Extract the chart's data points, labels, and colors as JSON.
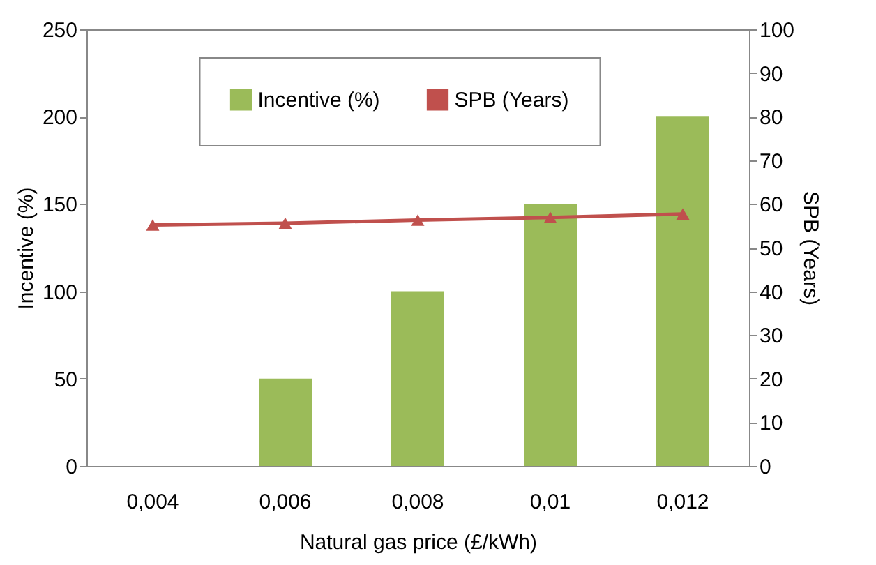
{
  "chart_data": {
    "type": "bar",
    "xlabel": "Natural gas price (£/kWh)",
    "ylabel": "Incentive (%)",
    "y2label": "SPB (Years)",
    "categories": [
      "0,004",
      "0,006",
      "0,008",
      "0,01",
      "0,012"
    ],
    "series": [
      {
        "name": "Incentive (%)",
        "color": "#9bbb59",
        "values": [
          0,
          50,
          100,
          150,
          200
        ]
      },
      {
        "name": "SPB (Years)",
        "type": "line",
        "axis": "y2",
        "color": "#c0504d",
        "values": [
          55.2,
          55.6,
          56.3,
          56.9,
          57.7
        ]
      }
    ],
    "ylim": [
      0,
      250
    ],
    "yticks": [
      0,
      50,
      100,
      150,
      200,
      250
    ],
    "y2lim": [
      0,
      100
    ],
    "y2ticks": [
      0,
      10,
      20,
      30,
      40,
      50,
      60,
      70,
      80,
      90,
      100
    ],
    "grid": false,
    "legend": "top",
    "marker": "triangle"
  }
}
